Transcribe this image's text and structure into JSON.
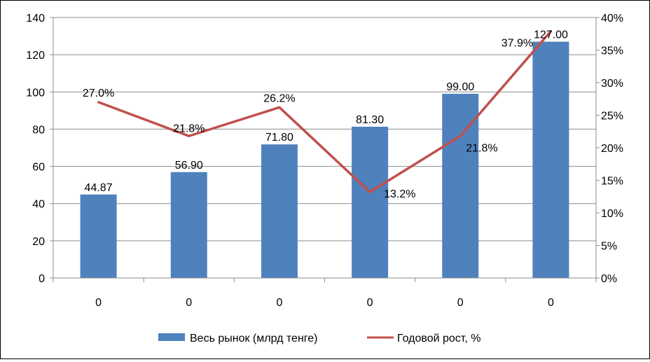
{
  "chart_data": {
    "type": "bar",
    "categories": [
      "0",
      "0",
      "0",
      "0",
      "0",
      "0"
    ],
    "series": [
      {
        "name": "Весь рынок (млрд тенге)",
        "type": "bar",
        "axis": "left",
        "color": "#4F81BD",
        "values": [
          44.87,
          56.9,
          71.8,
          81.3,
          99.0,
          127.0
        ],
        "labels": [
          "44.87",
          "56.90",
          "71.80",
          "81.30",
          "99.00",
          "127.00"
        ]
      },
      {
        "name": "Годовой рост, %",
        "type": "line",
        "axis": "right",
        "color": "#C0504D",
        "values": [
          27.0,
          21.8,
          26.2,
          13.2,
          21.8,
          37.9
        ],
        "labels": [
          "27.0%",
          "21.8%",
          "26.2%",
          "13.2%",
          "21.8%",
          "37.9%"
        ]
      }
    ],
    "y_left": {
      "min": 0,
      "max": 140,
      "step": 20,
      "ticks": [
        "0",
        "20",
        "40",
        "60",
        "80",
        "100",
        "120",
        "140"
      ]
    },
    "y_right": {
      "min": 0,
      "max": 40,
      "step": 5,
      "ticks": [
        "0%",
        "5%",
        "10%",
        "15%",
        "20%",
        "25%",
        "30%",
        "35%",
        "40%"
      ]
    },
    "grid": true,
    "legend_position": "bottom"
  }
}
